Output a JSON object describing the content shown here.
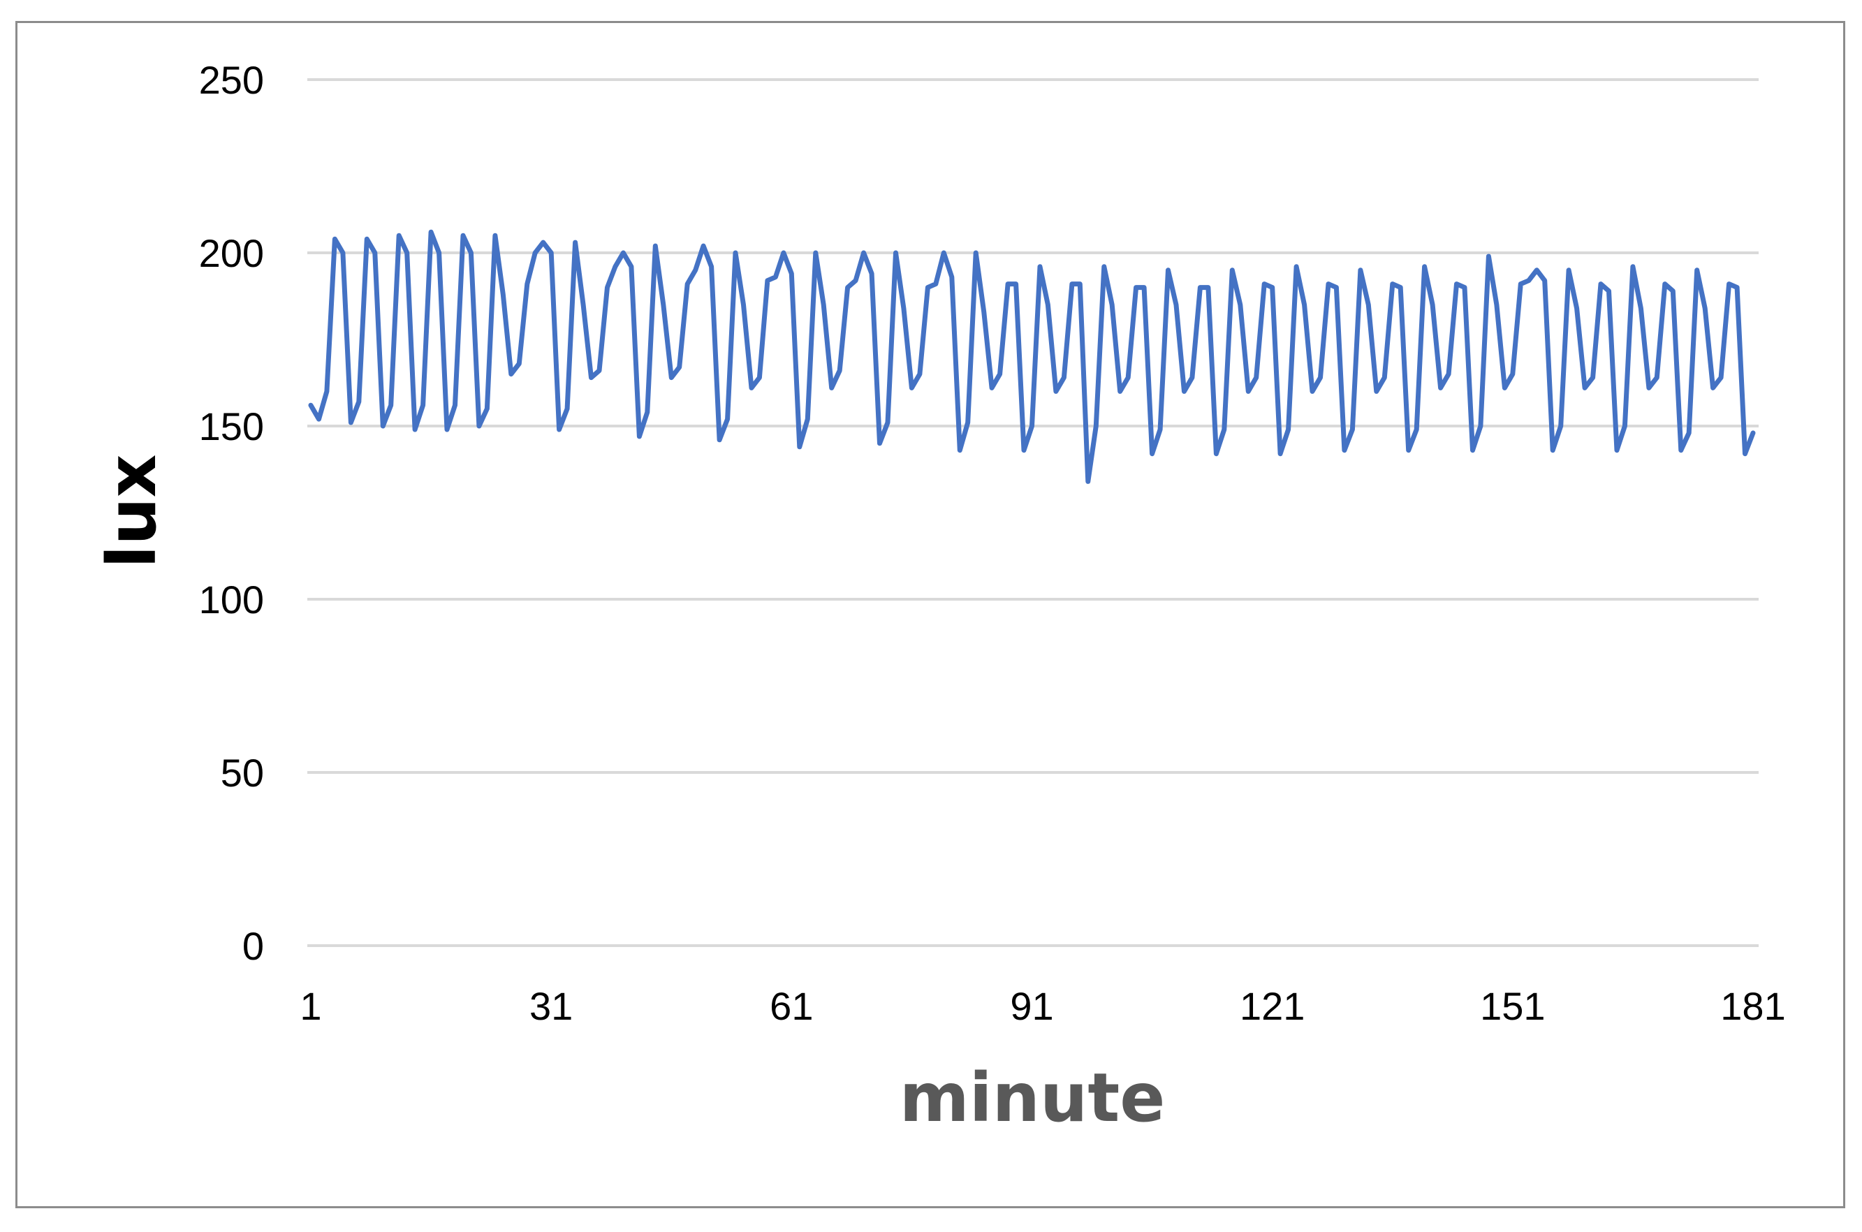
{
  "chart_data": {
    "type": "line",
    "title": "",
    "xlabel": "minute",
    "ylabel": "lux",
    "xlim": [
      1,
      181
    ],
    "ylim": [
      0,
      250
    ],
    "x_tick_labels": [
      "1",
      "31",
      "61",
      "91",
      "121",
      "151",
      "181"
    ],
    "y_tick_labels": [
      "0",
      "50",
      "100",
      "150",
      "200",
      "250"
    ],
    "grid": "horizontal",
    "legend": "none",
    "series": [
      {
        "color": "#4472C4",
        "x": [
          1,
          2,
          3,
          4,
          5,
          6,
          7,
          8,
          9,
          10,
          11,
          12,
          13,
          14,
          15,
          16,
          17,
          18,
          19,
          20,
          21,
          22,
          23,
          24,
          25,
          26,
          27,
          28,
          29,
          30,
          31,
          32,
          33,
          34,
          35,
          36,
          37,
          38,
          39,
          40,
          41,
          42,
          43,
          44,
          45,
          46,
          47,
          48,
          49,
          50,
          51,
          52,
          53,
          54,
          55,
          56,
          57,
          58,
          59,
          60,
          61,
          62,
          63,
          64,
          65,
          66,
          67,
          68,
          69,
          70,
          71,
          72,
          73,
          74,
          75,
          76,
          77,
          78,
          79,
          80,
          81,
          82,
          83,
          84,
          85,
          86,
          87,
          88,
          89,
          90,
          91,
          92,
          93,
          94,
          95,
          96,
          97,
          98,
          99,
          100,
          101,
          102,
          103,
          104,
          105,
          106,
          107,
          108,
          109,
          110,
          111,
          112,
          113,
          114,
          115,
          116,
          117,
          118,
          119,
          120,
          121,
          122,
          123,
          124,
          125,
          126,
          127,
          128,
          129,
          130,
          131,
          132,
          133,
          134,
          135,
          136,
          137,
          138,
          139,
          140,
          141,
          142,
          143,
          144,
          145,
          146,
          147,
          148,
          149,
          150,
          151,
          152,
          153,
          154,
          155,
          156,
          157,
          158,
          159,
          160,
          161,
          162,
          163,
          164,
          165,
          166,
          167,
          168,
          169,
          170,
          171,
          172,
          173,
          174,
          175,
          176,
          177,
          178,
          179,
          180,
          181
        ],
        "y": [
          156,
          152,
          160,
          204,
          200,
          151,
          157,
          204,
          200,
          150,
          156,
          205,
          200,
          149,
          156,
          206,
          200,
          149,
          156,
          205,
          200,
          150,
          155,
          205,
          188,
          165,
          168,
          191,
          200,
          203,
          200,
          149,
          155,
          203,
          185,
          164,
          166,
          190,
          196,
          200,
          196,
          147,
          154,
          202,
          185,
          164,
          167,
          191,
          195,
          202,
          196,
          146,
          152,
          200,
          185,
          161,
          164,
          192,
          193,
          200,
          194,
          144,
          152,
          200,
          185,
          161,
          166,
          190,
          192,
          200,
          194,
          145,
          151,
          200,
          184,
          161,
          165,
          190,
          191,
          200,
          193,
          143,
          151,
          200,
          183,
          161,
          165,
          191,
          191,
          143,
          150,
          196,
          185,
          160,
          164,
          191,
          191,
          134,
          150,
          196,
          185,
          160,
          164,
          190,
          190,
          142,
          149,
          195,
          185,
          160,
          164,
          190,
          190,
          142,
          149,
          195,
          185,
          160,
          164,
          191,
          190,
          142,
          149,
          196,
          185,
          160,
          164,
          191,
          190,
          143,
          149,
          195,
          185,
          160,
          164,
          191,
          190,
          143,
          149,
          196,
          185,
          161,
          165,
          191,
          190,
          143,
          150,
          199,
          185,
          161,
          165,
          191,
          192,
          195,
          192,
          143,
          150,
          195,
          184,
          161,
          164,
          191,
          189,
          143,
          150,
          196,
          184,
          161,
          164,
          191,
          189,
          143,
          148,
          195,
          184,
          161,
          164,
          191,
          190,
          142,
          148
        ]
      }
    ]
  }
}
